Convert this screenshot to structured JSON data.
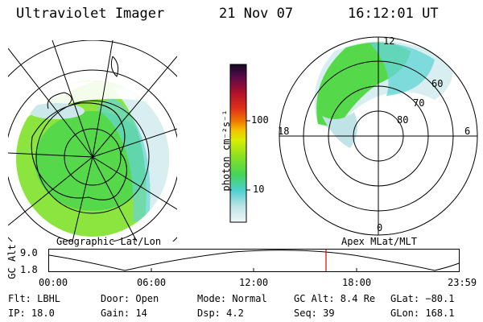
{
  "header": {
    "instrument": "Ultraviolet Imager",
    "date": "21 Nov 07",
    "time": "16:12:01 UT"
  },
  "colorbar": {
    "label": "photon cm⁻²s⁻¹",
    "ticks": [
      "100",
      "10"
    ],
    "scale": "log",
    "colors": [
      "#e8f4f4",
      "#bfe3e6",
      "#66d6d6",
      "#2cc9c9",
      "#55d84a",
      "#7fe22a",
      "#b6f000",
      "#e8f000",
      "#f5c400",
      "#f07800",
      "#e23a1a",
      "#c0142a",
      "#8a0a3a",
      "#4a0a4a",
      "#1a0a2a"
    ]
  },
  "left_map": {
    "caption": "Geographic Lat/Lon"
  },
  "right_map": {
    "caption": "Apex MLat/MLT",
    "mlt_labels": {
      "top": "12",
      "left": "18",
      "right": "6",
      "bottom": "0"
    },
    "lat_labels": [
      "60",
      "70",
      "80"
    ]
  },
  "timeline": {
    "ylabel": "GC Alt",
    "ymax": "9.0",
    "ymin": "1.8",
    "xticks": [
      "00:00",
      "06:00",
      "12:00",
      "18:00",
      "23:59"
    ],
    "marker_time": "16:12",
    "marker_color": "#e00000"
  },
  "info": {
    "row1": {
      "filter": "Flt: LBHL",
      "door": "Door: Open",
      "mode": "Mode: Normal",
      "gc_alt": "GC Alt: 8.4 Re",
      "glat": "GLat: −80.1"
    },
    "row2": {
      "ip": "IP: 18.0",
      "gain": "Gain: 14",
      "dsp": "Dsp:    4.2",
      "seq": "Seq: 39",
      "glon": "GLon: 168.1"
    }
  }
}
